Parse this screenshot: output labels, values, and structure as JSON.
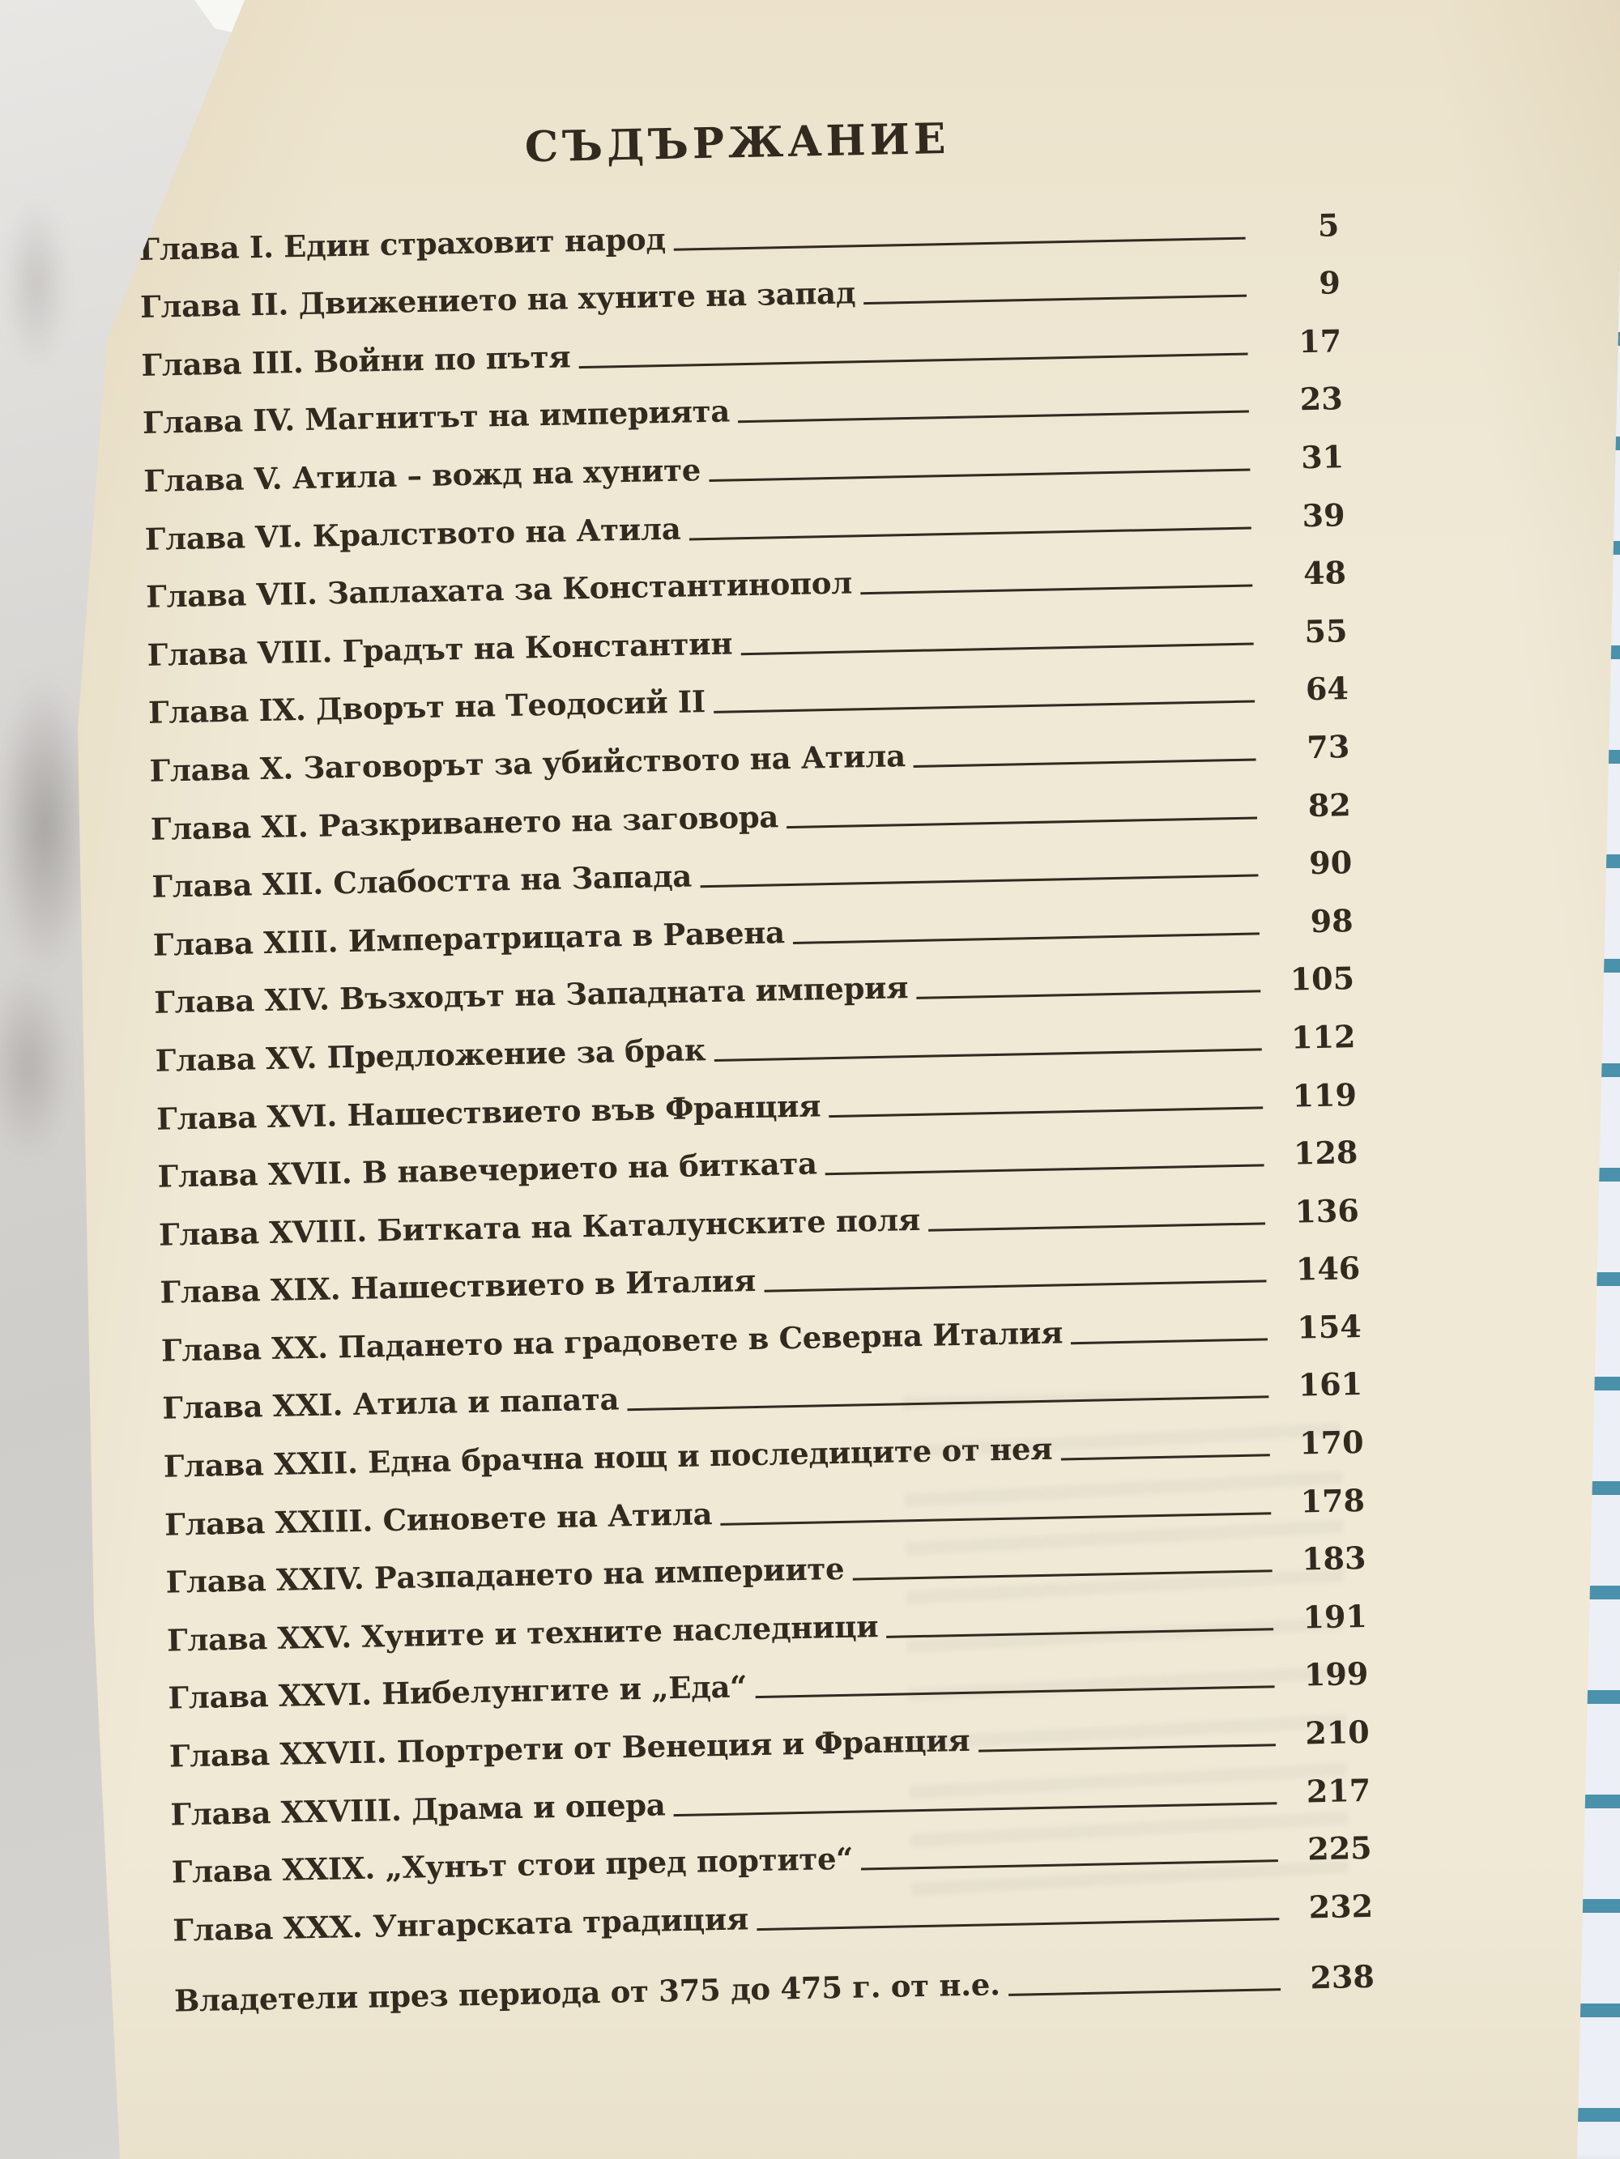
{
  "page": {
    "title": "СЪДЪРЖАНИЕ",
    "entries": [
      {
        "label": "Глава I. Един страховит народ",
        "page": "5"
      },
      {
        "label": "Глава II. Движението на хуните на запад",
        "page": "9"
      },
      {
        "label": "Глава III. Войни по пътя",
        "page": "17"
      },
      {
        "label": "Глава IV. Магнитът на империята",
        "page": "23"
      },
      {
        "label": "Глава V. Атила – вожд на хуните",
        "page": "31"
      },
      {
        "label": "Глава VI. Кралството на Атила",
        "page": "39"
      },
      {
        "label": "Глава VII. Заплахата за Константинопол",
        "page": "48"
      },
      {
        "label": "Глава VIII. Градът на Константин",
        "page": "55"
      },
      {
        "label": "Глава IX. Дворът на Теодосий II",
        "page": "64"
      },
      {
        "label": "Глава X. Заговорът за убийството на Атила",
        "page": "73"
      },
      {
        "label": "Глава XI. Разкриването на заговора",
        "page": "82"
      },
      {
        "label": "Глава XII. Слабостта на Запада",
        "page": "90"
      },
      {
        "label": "Глава XIII. Императрицата в Равена",
        "page": "98"
      },
      {
        "label": "Глава XIV. Възходът на Западната империя",
        "page": "105"
      },
      {
        "label": "Глава XV. Предложение за брак",
        "page": "112"
      },
      {
        "label": "Глава XVI. Нашествието във Франция",
        "page": "119"
      },
      {
        "label": "Глава XVII. В навечерието на битката",
        "page": "128"
      },
      {
        "label": "Глава XVIII. Битката на Каталунските поля",
        "page": "136"
      },
      {
        "label": "Глава XIX. Нашествието в Италия",
        "page": "146"
      },
      {
        "label": "Глава XX. Падането на градовете в Северна Италия",
        "page": "154"
      },
      {
        "label": "Глава XXI. Атила и папата",
        "page": "161"
      },
      {
        "label": "Глава XXII. Една брачна нощ и последиците от нея",
        "page": "170"
      },
      {
        "label": "Глава XXIII. Синовете на Атила",
        "page": "178"
      },
      {
        "label": "Глава XXIV. Разпадането на империите",
        "page": "183"
      },
      {
        "label": "Глава XXV. Хуните и техните наследници",
        "page": "191"
      },
      {
        "label": "Глава XXVI. Нибелунгите и „Еда“",
        "page": "199"
      },
      {
        "label": "Глава XXVII. Портрети от Венеция и Франция",
        "page": "210"
      },
      {
        "label": "Глава XXVIII. Драма и опера",
        "page": "217"
      },
      {
        "label": "Глава XXIX. „Хунът стои пред портите“",
        "page": "225"
      },
      {
        "label": "Глава XXX. Унгарската традиция",
        "page": "232"
      },
      {
        "label": "Владетели през периода от 375 до 475 г. от н.е.",
        "page": "238",
        "gap_before": true
      }
    ]
  },
  "colors": {
    "ink": "#32291f",
    "page_cream": "#efe9d6",
    "backdrop_gray": "#d6d4d1",
    "notebook_paper": "#edeff6",
    "notebook_line_blue": "#4a91ab"
  }
}
